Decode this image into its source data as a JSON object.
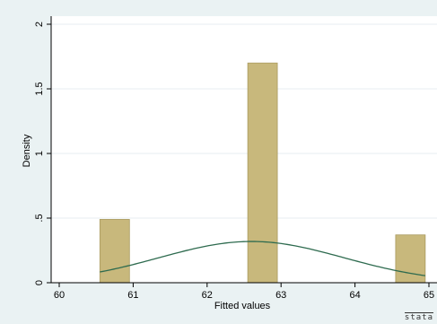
{
  "chart_data": {
    "type": "histogram",
    "xlabel": "Fitted values",
    "ylabel": "Density",
    "xlim": [
      60,
      65
    ],
    "ylim": [
      0,
      2
    ],
    "x_ticks": [
      60,
      61,
      62,
      63,
      64,
      65
    ],
    "x_tick_labels": [
      "60",
      "61",
      "62",
      "63",
      "64",
      "65"
    ],
    "y_ticks": [
      0,
      0.5,
      1,
      1.5,
      2
    ],
    "y_tick_labels": [
      "0",
      ".5",
      "1",
      "1.5",
      "2"
    ],
    "bars": [
      {
        "x_start": 60.55,
        "x_end": 60.95,
        "density": 0.49
      },
      {
        "x_start": 62.55,
        "x_end": 62.95,
        "density": 1.7
      },
      {
        "x_start": 64.55,
        "x_end": 64.95,
        "density": 0.37
      }
    ],
    "normal_curve": {
      "mean": 62.6,
      "sd": 1.25,
      "x_range": [
        60.55,
        64.95
      ]
    },
    "colors": {
      "bar_fill": "#c8b87c",
      "bar_stroke": "#a99a5e",
      "curve": "#2e6b4f",
      "plot_bg": "#ffffff",
      "outer_bg": "#eaf2f3"
    },
    "grid": true
  },
  "watermark": "stata"
}
